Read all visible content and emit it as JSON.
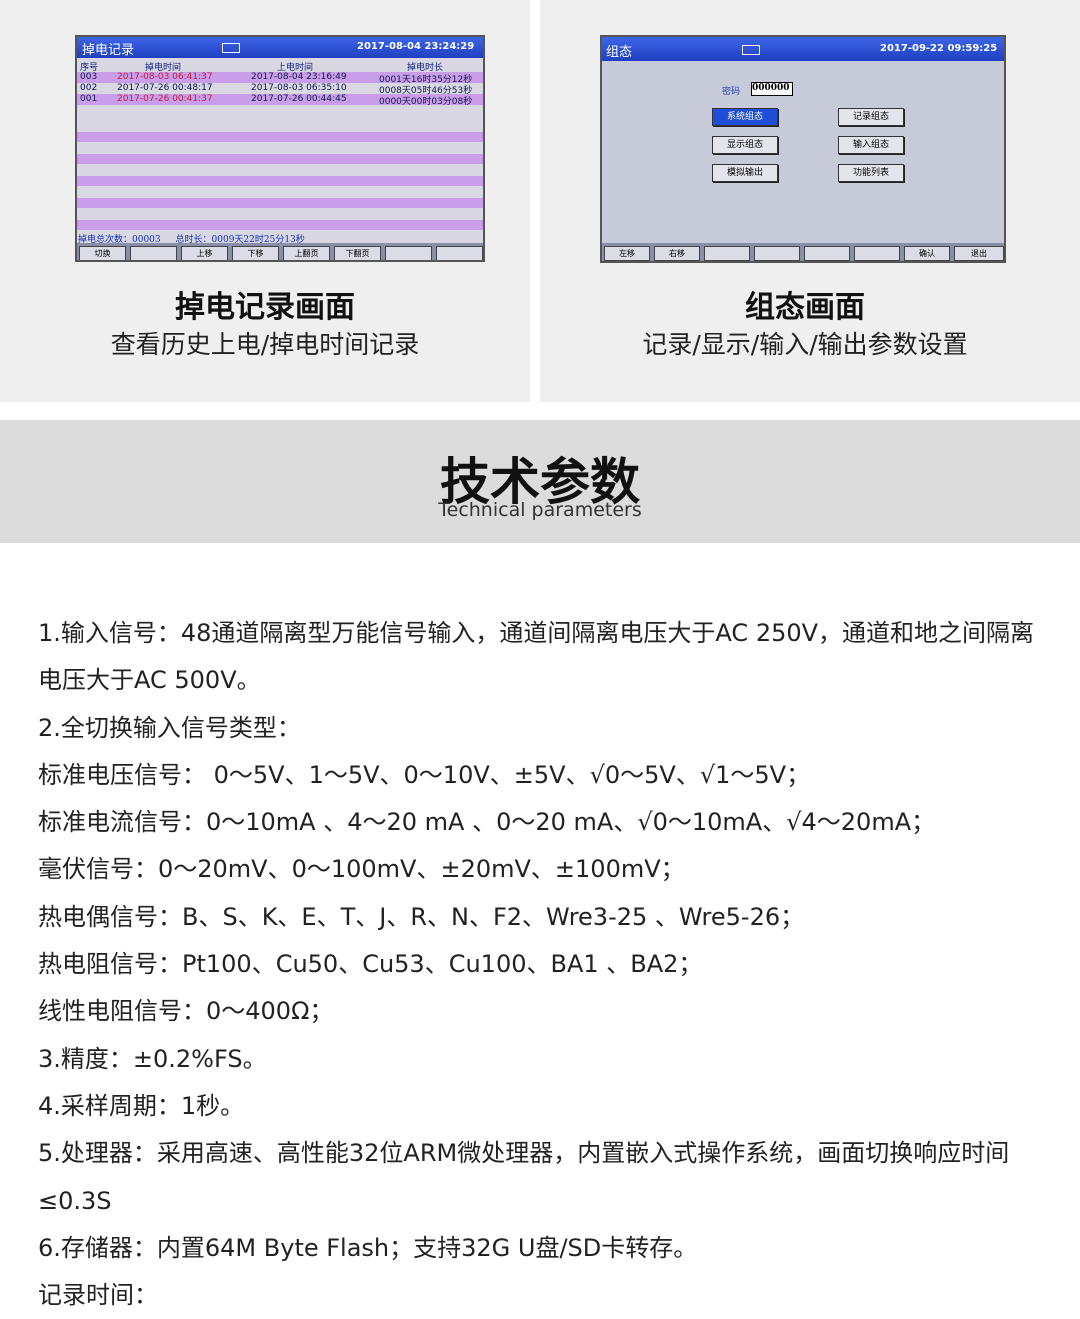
{
  "panels": [
    {
      "screen": {
        "title": "掉电记录",
        "datetime": "2017-08-04 23:24:29",
        "headers": [
          "序号",
          "掉电时间",
          "上电时间",
          "掉电时长"
        ],
        "rows": [
          [
            "003",
            "2017-08-03 06:41:37",
            "2017-08-04 23:16:49",
            "0001天16时35分12秒"
          ],
          [
            "002",
            "2017-07-26 00:48:17",
            "2017-08-03 06:35:10",
            "0008天05时46分53秒"
          ],
          [
            "001",
            "2017-07-26 00:41:37",
            "2017-07-26 00:44:45",
            "0000天00时03分08秒"
          ]
        ],
        "total_count": "掉电总次数：00003",
        "total_duration": "总时长：0009天22时25分13秒",
        "buttons": [
          "切换",
          "上移",
          "下移",
          "上翻页",
          "下翻页"
        ]
      },
      "caption": "掉电记录画面",
      "description": "查看历史上电/掉电时间记录"
    },
    {
      "screen": {
        "title": "组态",
        "datetime": "2017-09-22 09:59:25",
        "password_label": "密码",
        "password": "000000",
        "menu": [
          "系统组态",
          "记录组态",
          "显示组态",
          "输入组态",
          "模拟输出",
          "功能列表"
        ],
        "buttons": [
          "左移",
          "右移",
          "确认",
          "退出"
        ]
      },
      "caption": "组态画面",
      "description": "记录/显示/输入/输出参数设置"
    }
  ],
  "section": {
    "title": "技术参数",
    "subtitle": "Technical parameters"
  },
  "parameters": [
    "1.输入信号：48通道隔离型万能信号输入，通道间隔离电压大于AC 250V，通道和地之间隔离电压大于AC 500V。",
    "2.全切换输入信号类型：",
    "标准电压信号： 0～5V、1～5V、0～10V、±5V、√0～5V、√1～5V；",
    "标准电流信号：0～10mA 、4～20 mA 、0～20 mA、√0～10mA、√4～20mA；",
    "毫伏信号：0～20mV、0～100mV、±20mV、±100mV；",
    "热电偶信号：B、S、K、E、T、J、R、N、F2、Wre3-25 、Wre5-26；",
    "热电阻信号：Pt100、Cu50、Cu53、Cu100、BA1 、BA2；",
    "线性电阻信号：0～400Ω；",
    "3.精度：±0.2%FS。",
    "4.采样周期：1秒。",
    "5.处理器：采用高速、高性能32位ARM微处理器，内置嵌入式操作系统，画面切换响应时间≤0.3S",
    "6.存储器：内置64M Byte Flash；支持32G U盘/SD卡转存。",
    "记录时间："
  ]
}
